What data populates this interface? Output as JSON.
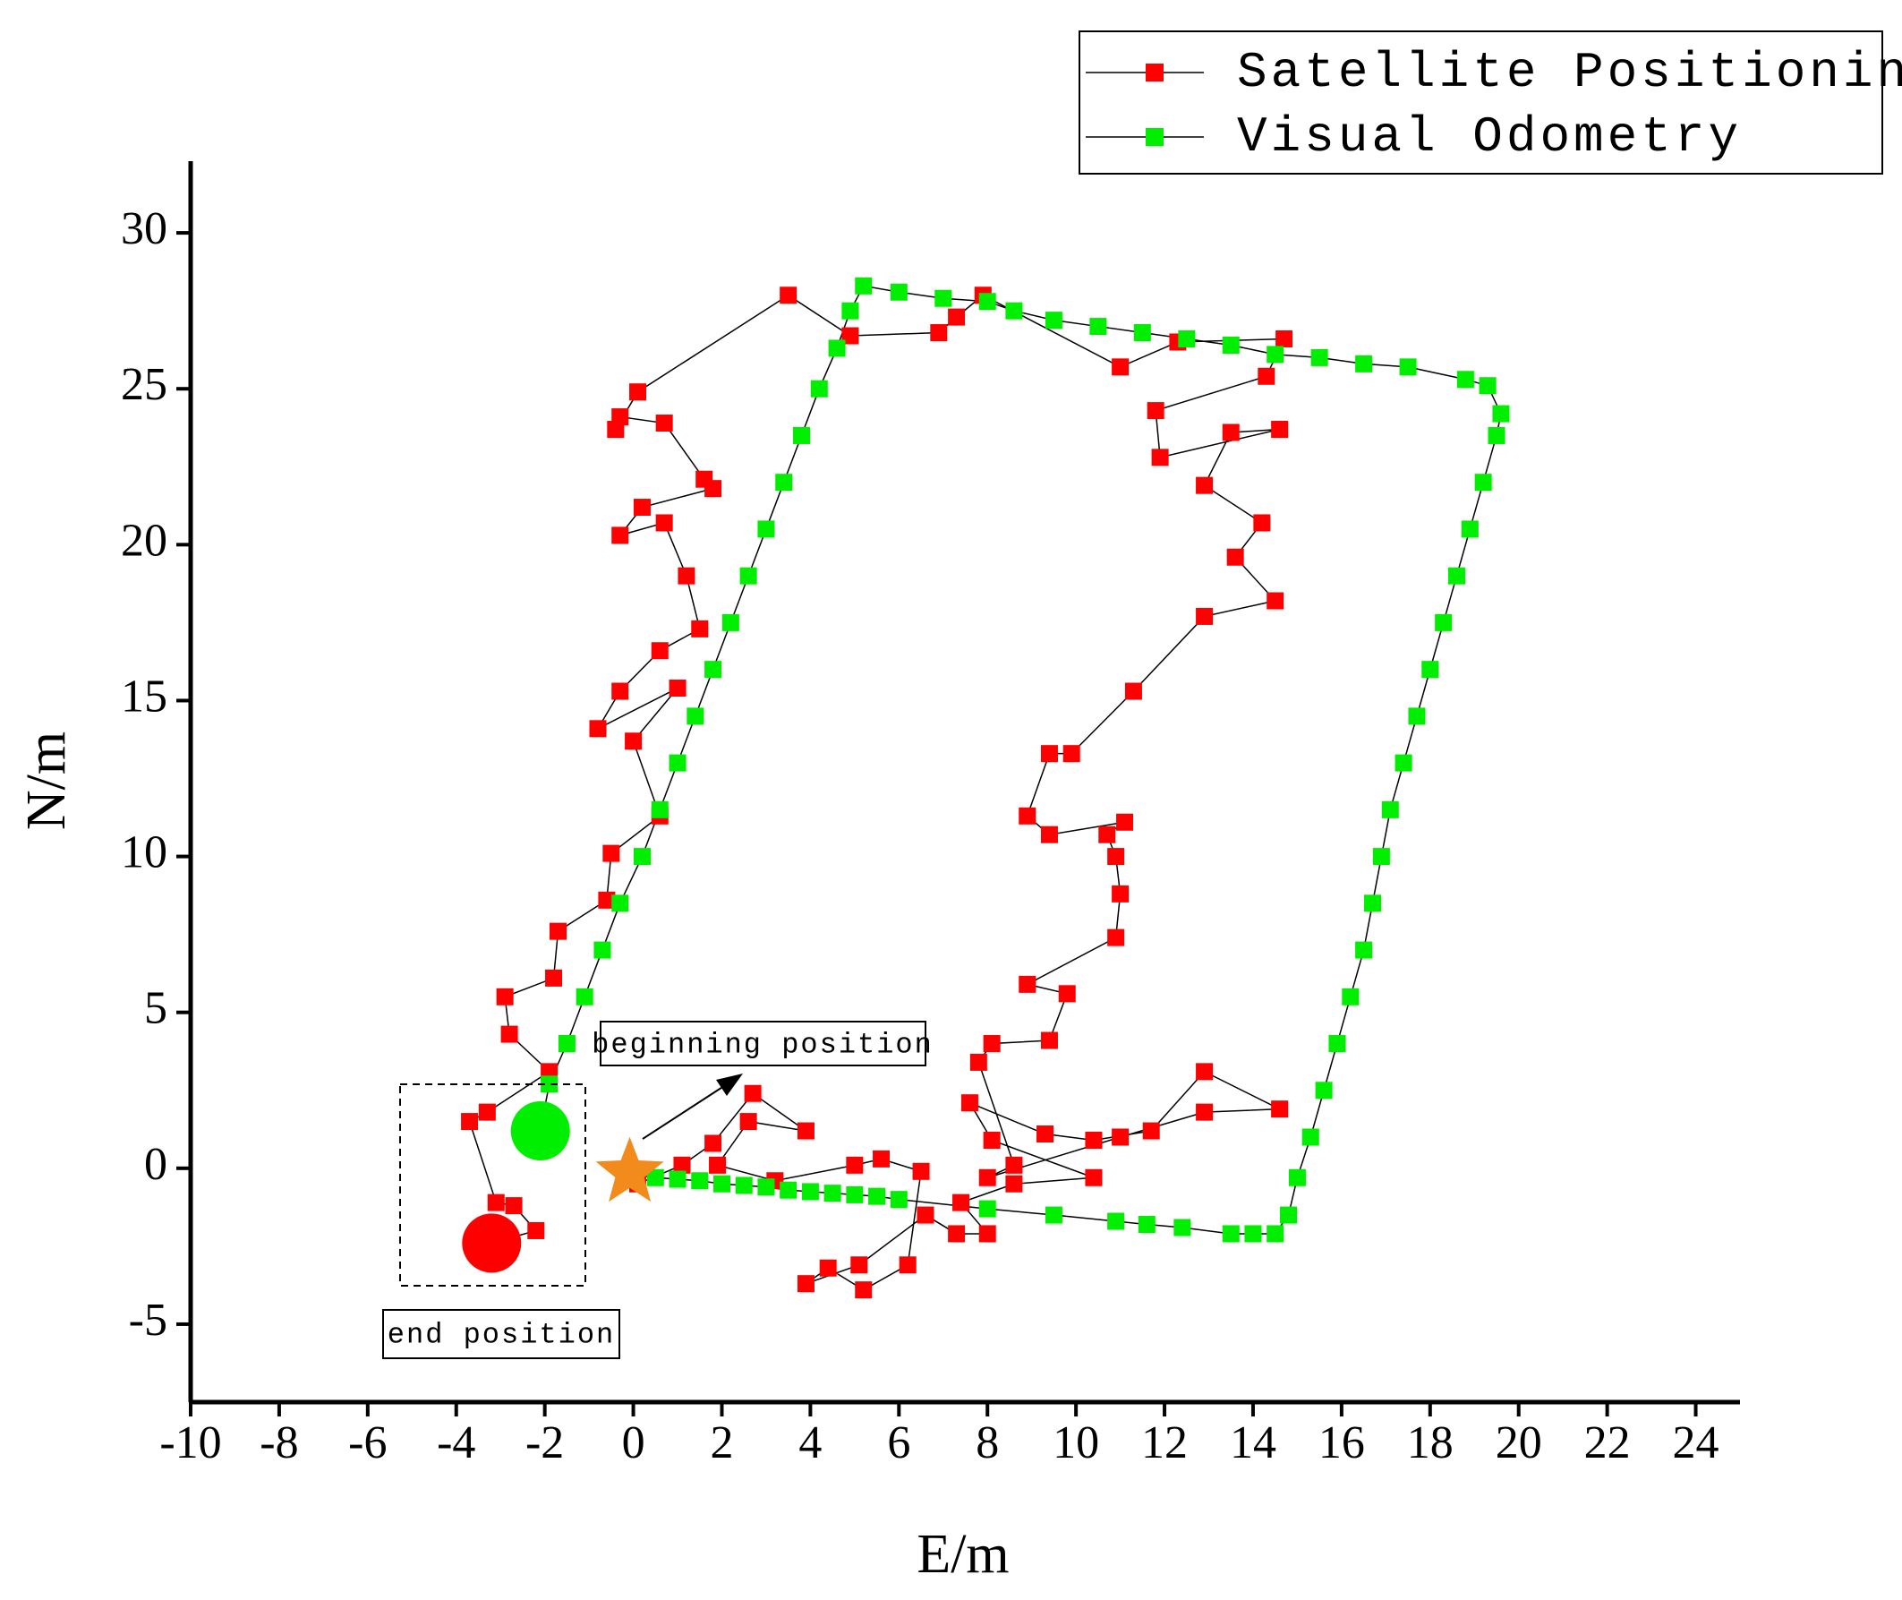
{
  "chart_data": {
    "type": "line",
    "x_label": "E/m",
    "y_label": "N/m",
    "xlim": [
      -10,
      25
    ],
    "ylim": [
      -7.5,
      32.3
    ],
    "xticks": [
      -10,
      -8,
      -6,
      -4,
      -2,
      0,
      2,
      4,
      6,
      8,
      10,
      12,
      14,
      16,
      18,
      20,
      22,
      24
    ],
    "yticks": [
      -5,
      0,
      5,
      10,
      15,
      20,
      25,
      30
    ],
    "line_color": "#000000",
    "legend": "top-right",
    "annotations": [
      {
        "text": "beginning position"
      },
      {
        "text": "end position"
      }
    ],
    "series": [
      {
        "name": "Satellite Positioning",
        "color": "#ff0000",
        "x": [
          0.1,
          1.1,
          1.8,
          2.7,
          3.9,
          2.6,
          1.9,
          3.2,
          5,
          5.6,
          6.5,
          6.2,
          5.2,
          4.4,
          3.9,
          5.1,
          6.6,
          7.3,
          8,
          7.4,
          8.6,
          10.4,
          8.1,
          7.6,
          9.3,
          10.4,
          11.7,
          12.9,
          14.6,
          12.9,
          11,
          8,
          8.6,
          7.8,
          8.1,
          9.4,
          9.8,
          8.9,
          10.9,
          11,
          10.9,
          10.7,
          11.1,
          9.4,
          8.9,
          9.4,
          9.9,
          11.3,
          12.9,
          14.5,
          13.6,
          14.2,
          12.9,
          13.5,
          14.6,
          11.9,
          11.8,
          14.3,
          14.7,
          12.3,
          11,
          7.9,
          7.3,
          6.9,
          4.9,
          3.5,
          0.1,
          -0.4,
          -0.3,
          0.7,
          1.6,
          1.8,
          0.2,
          -0.3,
          0.7,
          1.2,
          1.5,
          0.6,
          -0.3,
          -0.8,
          1,
          0,
          0.6,
          -0.5,
          -0.6,
          -1.7,
          -1.8,
          -2.9,
          -2.8,
          -1.9,
          -3.3,
          -3.7,
          -3.1,
          -2.7,
          -2.2,
          -3.2
        ],
        "values": [
          -0.5,
          0.1,
          0.8,
          2.4,
          1.2,
          1.5,
          0.1,
          -0.4,
          0.1,
          0.3,
          -0.1,
          -3.1,
          -3.9,
          -3.2,
          -3.7,
          -3.1,
          -1.5,
          -2.1,
          -2.1,
          -1.1,
          -0.5,
          -0.3,
          0.9,
          2.1,
          1.1,
          0.9,
          1.2,
          3.1,
          1.9,
          1.8,
          1.0,
          -0.3,
          0.1,
          3.4,
          4,
          4.1,
          5.6,
          5.9,
          7.4,
          8.8,
          10,
          10.7,
          11.1,
          10.7,
          11.3,
          13.3,
          13.3,
          15.3,
          17.7,
          18.2,
          19.6,
          20.7,
          21.9,
          23.6,
          23.7,
          22.8,
          24.3,
          25.4,
          26.6,
          26.5,
          25.7,
          28,
          27.3,
          26.8,
          26.7,
          28,
          24.9,
          23.7,
          24.1,
          23.9,
          22.1,
          21.8,
          21.2,
          20.3,
          20.7,
          19,
          17.3,
          16.6,
          15.3,
          14.1,
          15.4,
          13.7,
          11.3,
          10.1,
          8.6,
          7.6,
          6.1,
          5.5,
          4.3,
          3.1,
          1.8,
          1.5,
          -1.1,
          -1.2,
          -2,
          -2.4
        ]
      },
      {
        "name": "Visual Odometry",
        "color": "#00ee00",
        "x": [
          0,
          0.5,
          1,
          1.5,
          2,
          2.5,
          3,
          3.5,
          4,
          4.5,
          5,
          5.5,
          6,
          8,
          9.5,
          10.9,
          11.6,
          12.4,
          13.5,
          14,
          14.5,
          14.8,
          15,
          15.3,
          15.6,
          15.9,
          16.2,
          16.5,
          16.7,
          16.9,
          17.1,
          17.4,
          17.7,
          18,
          18.3,
          18.6,
          18.9,
          19.2,
          19.5,
          19.6,
          19.3,
          18.8,
          17.5,
          16.5,
          15.5,
          14.5,
          13.5,
          12.5,
          11.5,
          10.5,
          9.5,
          8.6,
          8,
          7,
          6,
          5.2,
          4.9,
          4.6,
          4.2,
          3.8,
          3.4,
          3,
          2.6,
          2.2,
          1.8,
          1.4,
          1,
          0.6,
          0.2,
          -0.3,
          -0.7,
          -1.1,
          -1.5,
          -1.9,
          -2.1
        ],
        "values": [
          -0.2,
          -0.3,
          -0.35,
          -0.4,
          -0.5,
          -0.55,
          -0.6,
          -0.7,
          -0.75,
          -0.8,
          -0.85,
          -0.9,
          -1.0,
          -1.3,
          -1.5,
          -1.7,
          -1.8,
          -1.9,
          -2.1,
          -2.1,
          -2.1,
          -1.5,
          -0.3,
          1,
          2.5,
          4,
          5.5,
          7,
          8.5,
          10,
          11.5,
          13,
          14.5,
          16,
          17.5,
          19,
          20.5,
          22,
          23.5,
          24.2,
          25.1,
          25.3,
          25.7,
          25.8,
          26,
          26.1,
          26.4,
          26.6,
          26.8,
          27,
          27.2,
          27.5,
          27.8,
          27.9,
          28.1,
          28.3,
          27.5,
          26.3,
          25,
          23.5,
          22,
          20.5,
          19,
          17.5,
          16,
          14.5,
          13,
          11.5,
          10,
          8.5,
          7,
          5.5,
          4,
          2.7,
          1.2
        ]
      }
    ]
  }
}
